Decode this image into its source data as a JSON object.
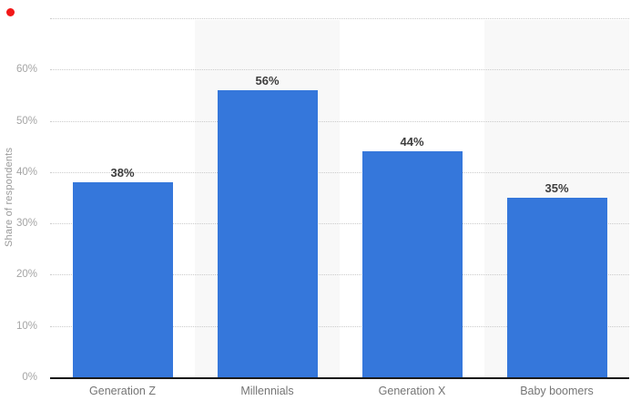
{
  "chart_data": {
    "type": "bar",
    "title": "",
    "xlabel": "",
    "ylabel": "Share of respondents",
    "categories": [
      "Generation Z",
      "Millennials",
      "Generation X",
      "Baby boomers"
    ],
    "values": [
      38,
      56,
      44,
      35
    ],
    "value_labels": [
      "38%",
      "56%",
      "44%",
      "35%"
    ],
    "ylim": [
      0,
      70
    ],
    "yticks": [
      0,
      10,
      20,
      30,
      40,
      50,
      60,
      70
    ],
    "ytick_labels": [
      "0%",
      "10%",
      "20%",
      "30%",
      "40%",
      "50%",
      "60%",
      ""
    ],
    "grid": "horizontal-dotted",
    "legend": "none",
    "alternating_column_bands": [
      1,
      3
    ],
    "colors": {
      "bar": "#3577db",
      "band": "#f8f8f8",
      "gridline": "#cbcbcb",
      "axis_line": "#1a1a1a",
      "value_label": "#3d3d3d",
      "category_label": "#757575",
      "tick_label": "#a5a5a5",
      "ylabel": "#9a9a9a"
    }
  },
  "marker": {
    "name": "red-dot",
    "color": "#f21818"
  }
}
